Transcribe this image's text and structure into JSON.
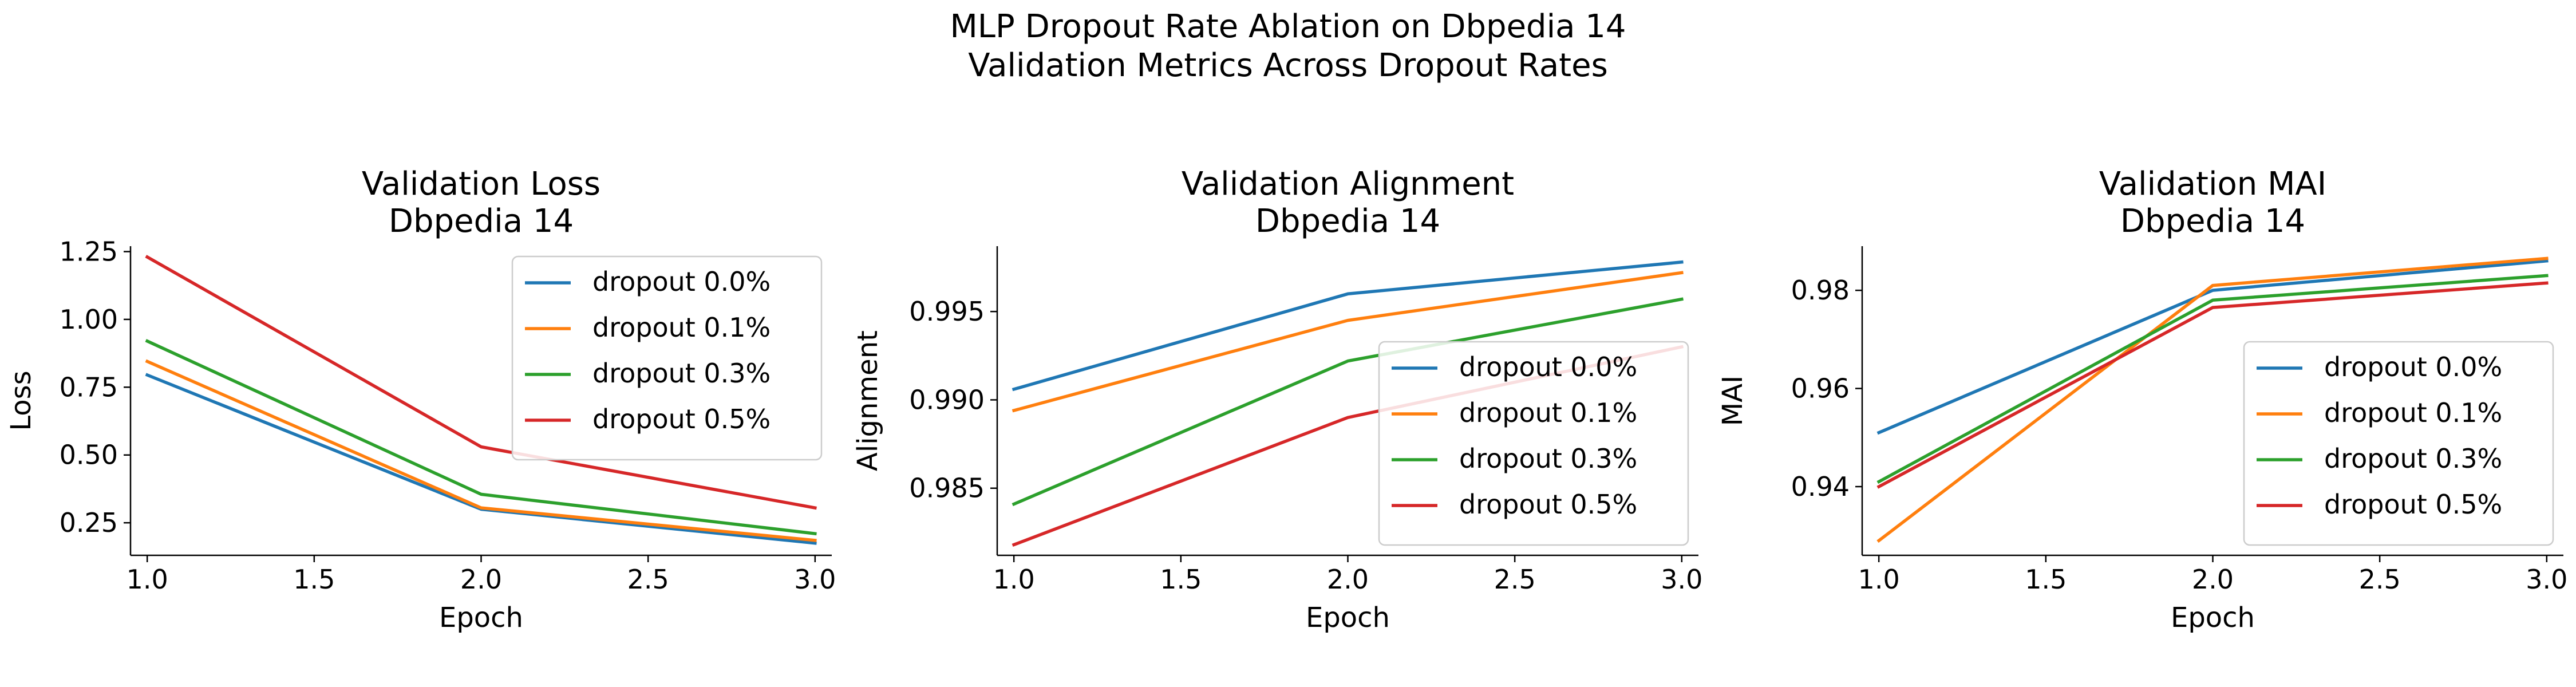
{
  "figure": {
    "title_line1": "MLP Dropout Rate Ablation on Dbpedia 14",
    "title_line2": "Validation Metrics Across Dropout Rates"
  },
  "colors": {
    "dropout 0.0%": "#1f77b4",
    "dropout 0.1%": "#ff7f0e",
    "dropout 0.3%": "#2ca02c",
    "dropout 0.5%": "#d62728"
  },
  "chart_data": [
    {
      "type": "line",
      "title_line1": "Validation Loss",
      "title_line2": "Dbpedia 14",
      "xlabel": "Epoch",
      "ylabel": "Loss",
      "x": [
        1.0,
        2.0,
        3.0
      ],
      "xlim": [
        0.95,
        3.05
      ],
      "ylim": [
        0.13,
        1.27
      ],
      "xticks": [
        "1.0",
        "1.5",
        "2.0",
        "2.5",
        "3.0"
      ],
      "yticks": [
        "0.25",
        "0.50",
        "0.75",
        "1.00",
        "1.25"
      ],
      "legend_position": "upper right",
      "series": [
        {
          "name": "dropout 0.0%",
          "values": [
            0.795,
            0.3,
            0.175
          ]
        },
        {
          "name": "dropout 0.1%",
          "values": [
            0.845,
            0.305,
            0.185
          ]
        },
        {
          "name": "dropout 0.3%",
          "values": [
            0.92,
            0.355,
            0.21
          ]
        },
        {
          "name": "dropout 0.5%",
          "values": [
            1.23,
            0.53,
            0.305
          ]
        }
      ]
    },
    {
      "type": "line",
      "title_line1": "Validation Alignment",
      "title_line2": "Dbpedia 14",
      "xlabel": "Epoch",
      "ylabel": "Alignment",
      "x": [
        1.0,
        2.0,
        3.0
      ],
      "xlim": [
        0.95,
        3.05
      ],
      "ylim": [
        0.9812,
        0.9987
      ],
      "xticks": [
        "1.0",
        "1.5",
        "2.0",
        "2.5",
        "3.0"
      ],
      "yticks": [
        "0.985",
        "0.990",
        "0.995"
      ],
      "legend_position": "lower right",
      "series": [
        {
          "name": "dropout 0.0%",
          "values": [
            0.9906,
            0.996,
            0.9978
          ]
        },
        {
          "name": "dropout 0.1%",
          "values": [
            0.9894,
            0.9945,
            0.9972
          ]
        },
        {
          "name": "dropout 0.3%",
          "values": [
            0.9841,
            0.9922,
            0.9957
          ]
        },
        {
          "name": "dropout 0.5%",
          "values": [
            0.9818,
            0.989,
            0.993
          ]
        }
      ]
    },
    {
      "type": "line",
      "title_line1": "Validation MAI",
      "title_line2": "Dbpedia 14",
      "xlabel": "Epoch",
      "ylabel": "MAI",
      "x": [
        1.0,
        2.0,
        3.0
      ],
      "xlim": [
        0.95,
        3.05
      ],
      "ylim": [
        0.926,
        0.989
      ],
      "xticks": [
        "1.0",
        "1.5",
        "2.0",
        "2.5",
        "3.0"
      ],
      "yticks": [
        "0.94",
        "0.96",
        "0.98"
      ],
      "legend_position": "lower right",
      "series": [
        {
          "name": "dropout 0.0%",
          "values": [
            0.951,
            0.98,
            0.986
          ]
        },
        {
          "name": "dropout 0.1%",
          "values": [
            0.929,
            0.981,
            0.9865
          ]
        },
        {
          "name": "dropout 0.3%",
          "values": [
            0.941,
            0.978,
            0.983
          ]
        },
        {
          "name": "dropout 0.5%",
          "values": [
            0.94,
            0.9765,
            0.9815
          ]
        }
      ]
    }
  ]
}
